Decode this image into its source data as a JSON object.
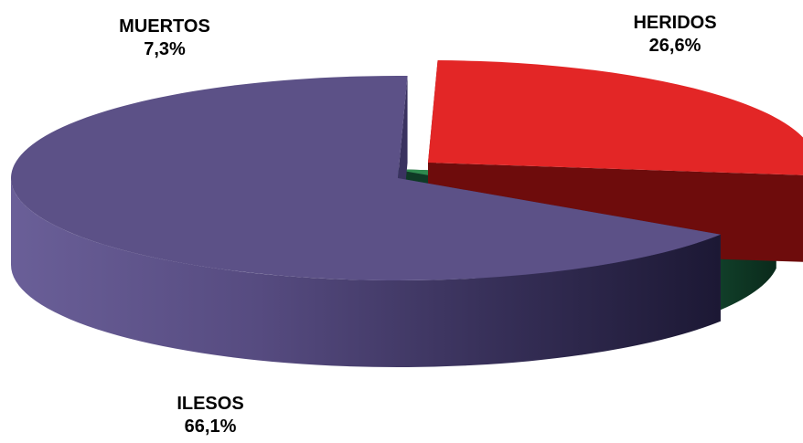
{
  "chart_data": {
    "type": "pie",
    "categories": [
      "ILESOS",
      "HERIDOS",
      "MUERTOS"
    ],
    "values": [
      66.1,
      26.6,
      7.3
    ],
    "value_labels": [
      "66,1%",
      "26,6%",
      "7,3%"
    ],
    "colors": [
      "#5c5187",
      "#e32626",
      "#2f8a4f"
    ],
    "title": "",
    "legend": "none",
    "three_d": true
  }
}
